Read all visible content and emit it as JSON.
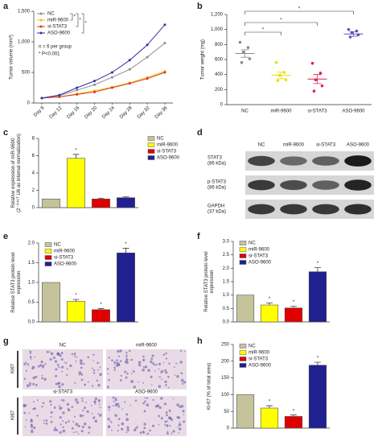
{
  "chart_data": [
    {
      "type": "line",
      "panel": "a",
      "y_label": [
        "Tumor volume (mm³)"
      ],
      "categories": [
        "Day 8",
        "Day 12",
        "Day 16",
        "Day 20",
        "Day 24",
        "Day 28",
        "Day 32",
        "Day 36"
      ],
      "series": [
        {
          "name": "NC",
          "color": "#8c8c8c",
          "values": [
            80,
            120,
            210,
            300,
            420,
            550,
            750,
            980
          ]
        },
        {
          "name": "miR-9600",
          "color": "#f0c000",
          "values": [
            80,
            100,
            150,
            200,
            260,
            330,
            420,
            520
          ]
        },
        {
          "name": "si-STAT3",
          "color": "#e03030",
          "values": [
            80,
            100,
            140,
            180,
            250,
            320,
            400,
            500
          ]
        },
        {
          "name": "ASO-9600",
          "color": "#3030a0",
          "values": [
            80,
            130,
            250,
            360,
            500,
            700,
            950,
            1280
          ]
        }
      ],
      "ylim": [
        0,
        1500
      ],
      "yticks": [
        0,
        500,
        {
          "value": 1000,
          "label": "1,000"
        },
        {
          "value": 1500,
          "label": "1,500"
        }
      ],
      "significance": [
        "*",
        "*",
        "*"
      ],
      "notes": [
        "n = 6 per group",
        "* P<0.001"
      ]
    },
    {
      "type": "dot",
      "panel": "b",
      "y_label": [
        "Tumor weight (mg)"
      ],
      "categories": [
        "NC",
        "miR-9600",
        "si-STAT3",
        "ASO-9600"
      ],
      "colors": [
        "#8c8c8c",
        "#e8e000",
        "#e0204a",
        "#6050c0"
      ],
      "points": [
        [
          830,
          760,
          700,
          610,
          560
        ],
        [
          560,
          430,
          390,
          330,
          320
        ],
        [
          550,
          420,
          330,
          250,
          180
        ],
        [
          1000,
          980,
          960,
          930,
          900
        ]
      ],
      "means": [
        680,
        390,
        340,
        940
      ],
      "errors": [
        50,
        45,
        60,
        30
      ],
      "ylim": [
        0,
        1200
      ],
      "yticks": [
        0,
        200,
        400,
        600,
        800,
        {
          "value": 1000,
          "label": "1,000"
        },
        {
          "value": 1200,
          "label": "1,200"
        }
      ],
      "significance": [
        "*",
        "*",
        "*"
      ]
    },
    {
      "type": "bar",
      "panel": "c",
      "y_label": [
        "Relative expression of miR-9600",
        "(2⁻ᐞᐞᶜᵀ U6 as internal normalization)"
      ],
      "categories": [
        "NC",
        "miR-9600",
        "si-STAT3",
        "ASO-9600"
      ],
      "colors": [
        "#c5c39b",
        "#ffff00",
        "#e00000",
        "#202090"
      ],
      "values": [
        1,
        5.7,
        1.0,
        1.15
      ],
      "errors": [
        null,
        0.45,
        0.1,
        0.1
      ],
      "ylim": [
        0,
        8
      ],
      "yticks": [
        0,
        2,
        4,
        6,
        8
      ],
      "significance": [
        null,
        "*",
        null,
        null
      ],
      "legend": "right"
    },
    {
      "type": "bar",
      "panel": "e",
      "y_label": [
        "Relative STAT3 protein level",
        "expression"
      ],
      "categories": [
        "NC",
        "miR-9600",
        "si-STAT3",
        "ASO-9600"
      ],
      "colors": [
        "#c5c39b",
        "#ffff00",
        "#e00000",
        "#202090"
      ],
      "values": [
        1.0,
        0.52,
        0.31,
        1.75
      ],
      "errors": [
        null,
        0.05,
        0.03,
        0.12
      ],
      "ylim": [
        0,
        2
      ],
      "yticks": [
        {
          "value": 0,
          "label": "0.0"
        },
        0.5,
        {
          "value": 1,
          "label": "1.0"
        },
        1.5,
        {
          "value": 2,
          "label": "2.0"
        }
      ],
      "significance": [
        null,
        "*",
        "*",
        "*"
      ],
      "legend": "upper left"
    },
    {
      "type": "bar",
      "panel": "f",
      "y_label": [
        "Relative STAT3 protein level",
        "expression"
      ],
      "categories": [
        "NC",
        "miR-9600",
        "si-STAT3",
        "ASO-9600"
      ],
      "colors": [
        "#c5c39b",
        "#ffff00",
        "#e00000",
        "#202090"
      ],
      "values": [
        1.0,
        0.63,
        0.52,
        1.87
      ],
      "errors": [
        null,
        0.08,
        0.06,
        0.15
      ],
      "ylim": [
        0,
        3
      ],
      "yticks": [
        {
          "value": 0,
          "label": "0.0"
        },
        0.5,
        {
          "value": 1,
          "label": "1.0"
        },
        1.5,
        {
          "value": 2,
          "label": "2.0"
        },
        2.5,
        {
          "value": 3,
          "label": "3.0"
        }
      ],
      "significance": [
        null,
        "*",
        "*",
        "*"
      ],
      "legend": "upper left"
    },
    {
      "type": "bar",
      "panel": "h",
      "y_label": [
        "Ki-67 (% of total area)"
      ],
      "categories": [
        "NC",
        "miR-9600",
        "si-STAT3",
        "ASO-9600"
      ],
      "colors": [
        "#c5c39b",
        "#ffff00",
        "#e00000",
        "#202090"
      ],
      "values": [
        100,
        60,
        35,
        188
      ],
      "errors": [
        null,
        7,
        4,
        9
      ],
      "ylim": [
        0,
        250
      ],
      "yticks": [
        0,
        50,
        100,
        150,
        200,
        250
      ],
      "significance": [
        null,
        "*",
        "*",
        "*"
      ],
      "legend": "upper left"
    }
  ],
  "blot": {
    "panel": "d",
    "columns": [
      "NC",
      "miR-9600",
      "si-STAT3",
      "ASO-9600"
    ],
    "rows": [
      [
        "STAT3",
        "(86 kDa)"
      ],
      [
        "p-STAT3",
        "(86 kDa)"
      ],
      [
        "GAPDH",
        "(37 kDa)"
      ]
    ]
  },
  "ihc": {
    "panel": "g",
    "rows": [
      {
        "stain": "Ki67",
        "columns": [
          "NC",
          "miR-9600"
        ]
      },
      {
        "stain": "Ki67",
        "columns": [
          "si-STAT3",
          "ASO-9600"
        ]
      }
    ]
  }
}
